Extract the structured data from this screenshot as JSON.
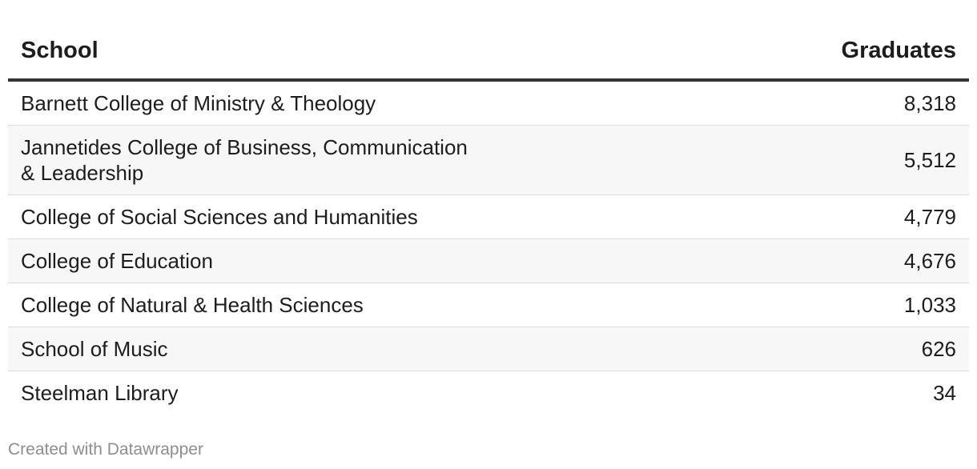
{
  "chart_data": {
    "type": "table",
    "columns": [
      "School",
      "Graduates"
    ],
    "rows": [
      {
        "school": "Barnett College of Ministry & Theology",
        "graduates": "8,318"
      },
      {
        "school": "Jannetides College of Business, Communication & Leadership",
        "graduates": "5,512"
      },
      {
        "school": "College of Social Sciences and Humanities",
        "graduates": "4,779"
      },
      {
        "school": "College of Education",
        "graduates": "4,676"
      },
      {
        "school": "College of Natural & Health Sciences",
        "graduates": "1,033"
      },
      {
        "school": "School of Music",
        "graduates": "626"
      },
      {
        "school": "Steelman Library",
        "graduates": "34"
      }
    ]
  },
  "footer": {
    "credit": "Created with Datawrapper"
  },
  "colors": {
    "text": "#1d1d1d",
    "header_rule": "#333333",
    "row_divider": "#dcdcdc",
    "stripe": "#f7f7f7",
    "credit": "#8e8e8e"
  }
}
